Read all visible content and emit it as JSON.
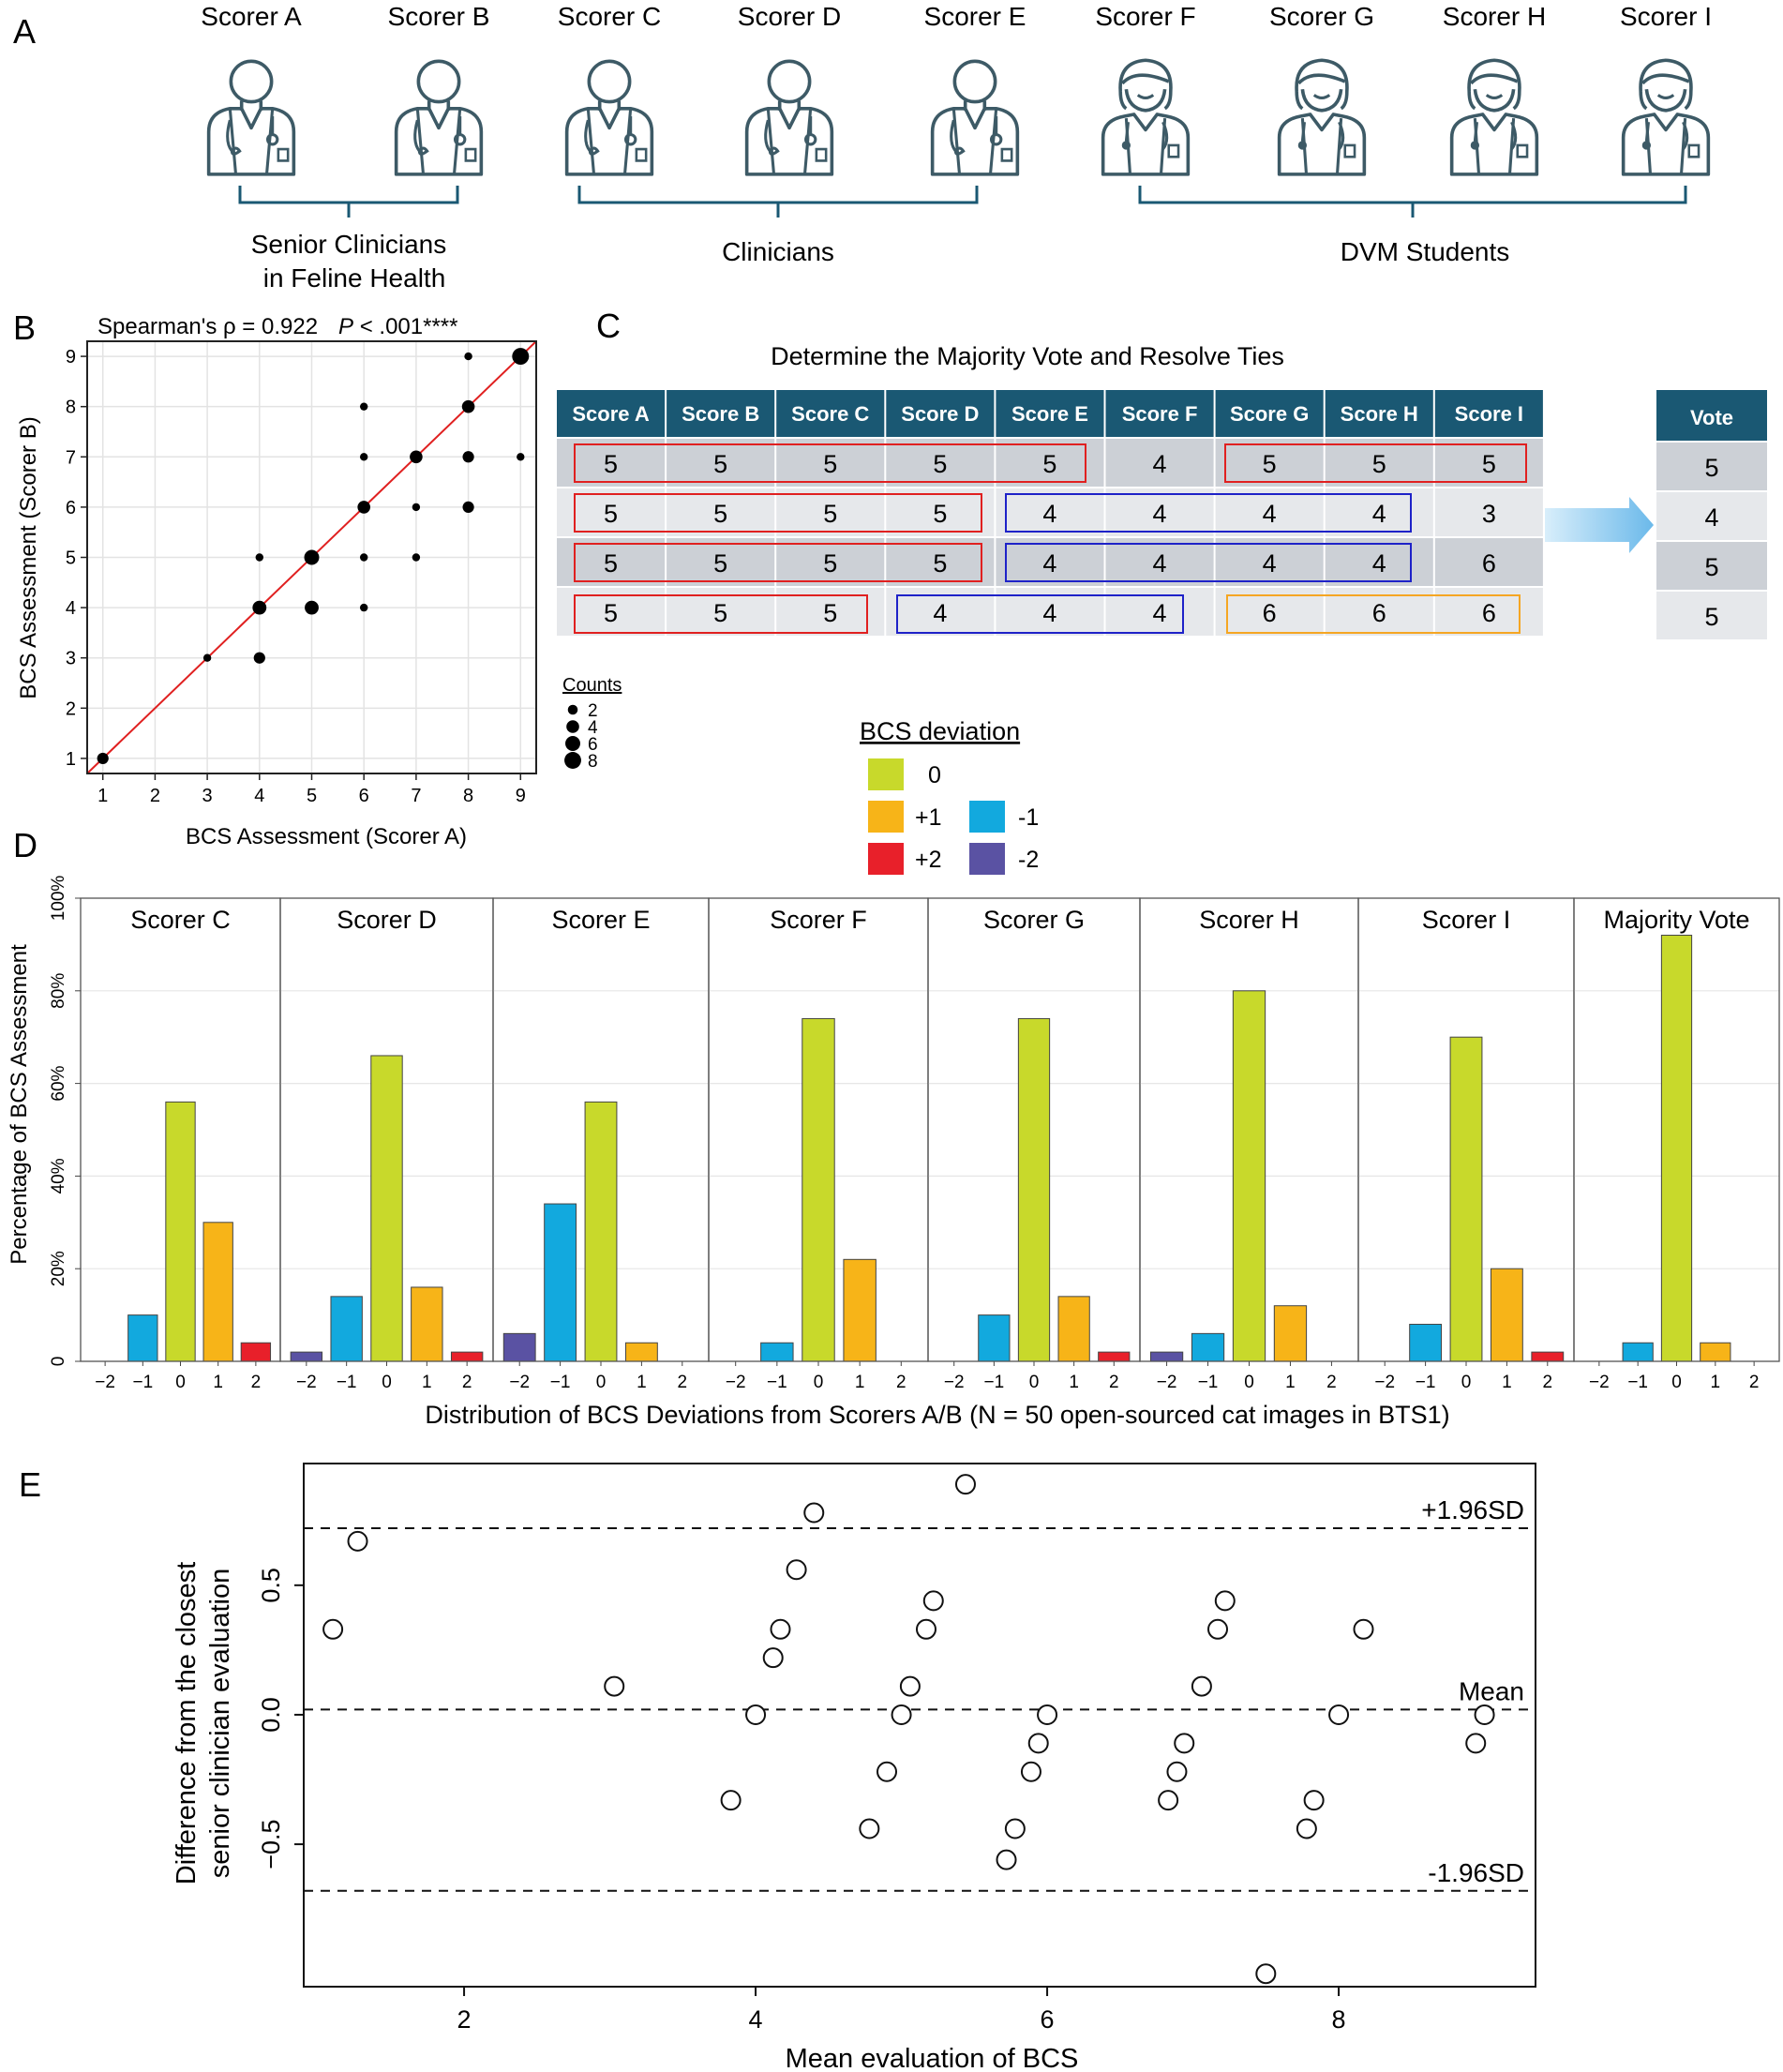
{
  "panel_labels": {
    "a": "A",
    "b": "B",
    "c": "C",
    "d": "D",
    "e": "E"
  },
  "colors": {
    "icon": "#3d5a66",
    "bracket": "#1a5873",
    "table_header": "#1a5873",
    "row_dark": "#ccd0d6",
    "row_light": "#e6e8eb",
    "red_group": "#e02020",
    "blue_group": "#1e22c8",
    "orange_group": "#f5a623",
    "arrow": "#8ec9ef",
    "identity_line": "#e02020"
  },
  "panel_a": {
    "scorers": [
      {
        "name": "Scorer A",
        "icon": "doctor-male-icon"
      },
      {
        "name": "Scorer B",
        "icon": "doctor-male-icon"
      },
      {
        "name": "Scorer C",
        "icon": "doctor-male-icon"
      },
      {
        "name": "Scorer D",
        "icon": "doctor-male-icon"
      },
      {
        "name": "Scorer E",
        "icon": "doctor-male-icon"
      },
      {
        "name": "Scorer F",
        "icon": "doctor-female-icon"
      },
      {
        "name": "Scorer G",
        "icon": "doctor-female-icon"
      },
      {
        "name": "Scorer H",
        "icon": "doctor-female-icon"
      },
      {
        "name": "Scorer I",
        "icon": "doctor-female-icon"
      }
    ],
    "groups": {
      "senior_line1": "Senior Clinicians",
      "senior_line2": "in Feline Health",
      "clinicians": "Clinicians",
      "students": "DVM Students"
    }
  },
  "panel_c": {
    "title": "Determine the Majority Vote and Resolve Ties",
    "headers": [
      "Score A",
      "Score B",
      "Score C",
      "Score D",
      "Score E",
      "Score F",
      "Score G",
      "Score H",
      "Score I"
    ],
    "rows": [
      [
        "5",
        "5",
        "5",
        "5",
        "5",
        "4",
        "5",
        "5",
        "5"
      ],
      [
        "5",
        "5",
        "5",
        "5",
        "4",
        "4",
        "4",
        "4",
        "3"
      ],
      [
        "5",
        "5",
        "5",
        "5",
        "4",
        "4",
        "4",
        "4",
        "6"
      ],
      [
        "5",
        "5",
        "5",
        "4",
        "4",
        "4",
        "6",
        "6",
        "6"
      ]
    ],
    "vote_header": "Vote",
    "votes": [
      "5",
      "4",
      "5",
      "5"
    ]
  },
  "chart_data": [
    {
      "id": "B",
      "type": "scatter",
      "title": "Spearman's ρ = 0.922",
      "p_label": "P",
      "p_value": " < .001****",
      "xlabel": "BCS Assessment (Scorer A)",
      "ylabel": "BCS Assessment (Scorer B)",
      "xlim": [
        0.7,
        9.3
      ],
      "ylim": [
        0.7,
        9.3
      ],
      "xticks": [
        1,
        2,
        3,
        4,
        5,
        6,
        7,
        8,
        9
      ],
      "yticks": [
        1,
        2,
        3,
        4,
        5,
        6,
        7,
        8,
        9
      ],
      "identity_line": true,
      "points": [
        {
          "x": 1,
          "y": 1,
          "count": 3
        },
        {
          "x": 3,
          "y": 3,
          "count": 1
        },
        {
          "x": 4,
          "y": 3,
          "count": 3
        },
        {
          "x": 4,
          "y": 4,
          "count": 5
        },
        {
          "x": 4,
          "y": 5,
          "count": 1
        },
        {
          "x": 5,
          "y": 4,
          "count": 5
        },
        {
          "x": 5,
          "y": 5,
          "count": 6
        },
        {
          "x": 6,
          "y": 4,
          "count": 1
        },
        {
          "x": 6,
          "y": 5,
          "count": 1
        },
        {
          "x": 6,
          "y": 6,
          "count": 4
        },
        {
          "x": 6,
          "y": 7,
          "count": 1
        },
        {
          "x": 6,
          "y": 8,
          "count": 1
        },
        {
          "x": 7,
          "y": 5,
          "count": 1
        },
        {
          "x": 7,
          "y": 6,
          "count": 1
        },
        {
          "x": 7,
          "y": 7,
          "count": 4
        },
        {
          "x": 8,
          "y": 6,
          "count": 3
        },
        {
          "x": 8,
          "y": 7,
          "count": 3
        },
        {
          "x": 8,
          "y": 8,
          "count": 4
        },
        {
          "x": 8,
          "y": 9,
          "count": 1
        },
        {
          "x": 9,
          "y": 7,
          "count": 1
        },
        {
          "x": 9,
          "y": 9,
          "count": 8
        }
      ],
      "size_legend": {
        "title": "Counts",
        "values": [
          2,
          4,
          6,
          8
        ]
      }
    },
    {
      "id": "D",
      "type": "bar",
      "xlabel": "Distribution of BCS Deviations from Scorers A/B (N = 50 open-sourced cat images in BTS1)",
      "ylabel": "Percentage of BCS Assessment",
      "ylim": [
        0,
        100
      ],
      "yticks": [
        "0",
        "20%",
        "40%",
        "60%",
        "80%",
        "100%"
      ],
      "categories": [
        "−2",
        "−1",
        "0",
        "1",
        "2"
      ],
      "legend": {
        "title": "BCS deviation",
        "items": [
          {
            "label": "0",
            "color": "#c8d92b"
          },
          {
            "label": "+1",
            "color": "#f7b418"
          },
          {
            "label": "-1",
            "color": "#12a9de"
          },
          {
            "label": "+2",
            "color": "#e8202a"
          },
          {
            "label": "-2",
            "color": "#5a52a3"
          }
        ]
      },
      "category_colors": [
        "#5a52a3",
        "#12a9de",
        "#c8d92b",
        "#f7b418",
        "#e8202a"
      ],
      "facets": [
        {
          "name": "Scorer C",
          "values": [
            0,
            10,
            56,
            30,
            4
          ]
        },
        {
          "name": "Scorer D",
          "values": [
            2,
            14,
            66,
            16,
            2
          ]
        },
        {
          "name": "Scorer E",
          "values": [
            6,
            34,
            56,
            4,
            0
          ]
        },
        {
          "name": "Scorer F",
          "values": [
            0,
            4,
            74,
            22,
            0
          ]
        },
        {
          "name": "Scorer G",
          "values": [
            0,
            10,
            74,
            14,
            2
          ]
        },
        {
          "name": "Scorer H",
          "values": [
            2,
            6,
            80,
            12,
            0
          ]
        },
        {
          "name": "Scorer I",
          "values": [
            0,
            8,
            70,
            20,
            2
          ]
        },
        {
          "name": "Majority Vote",
          "values": [
            0,
            4,
            92,
            4,
            0
          ]
        }
      ]
    },
    {
      "id": "E",
      "type": "scatter",
      "subtype": "bland-altman",
      "xlabel": "Mean evaluation of BCS",
      "ylabel_line1": "Difference from the closest",
      "ylabel_line2": "senior clinician evaluation",
      "xlim": [
        0.9,
        9.35
      ],
      "ylim": [
        -1.05,
        0.97
      ],
      "xticks": [
        2,
        4,
        6,
        8
      ],
      "yticks": [
        0.5,
        0.0,
        -0.5
      ],
      "ytick_labels": [
        "0.5",
        "0.0",
        "−0.5"
      ],
      "hlines": [
        {
          "label": "+1.96SD",
          "y": 0.72
        },
        {
          "label": "Mean",
          "y": 0.02
        },
        {
          "label": "-1.96SD",
          "y": -0.68
        }
      ],
      "points": [
        {
          "x": 1.1,
          "y": 0.33
        },
        {
          "x": 1.27,
          "y": 0.67
        },
        {
          "x": 3.03,
          "y": 0.11
        },
        {
          "x": 3.83,
          "y": -0.33
        },
        {
          "x": 4.0,
          "y": 0.0
        },
        {
          "x": 4.12,
          "y": 0.22
        },
        {
          "x": 4.17,
          "y": 0.33
        },
        {
          "x": 4.28,
          "y": 0.56
        },
        {
          "x": 4.4,
          "y": 0.78
        },
        {
          "x": 4.78,
          "y": -0.44
        },
        {
          "x": 4.9,
          "y": -0.22
        },
        {
          "x": 5.0,
          "y": 0.0
        },
        {
          "x": 5.06,
          "y": 0.11
        },
        {
          "x": 5.17,
          "y": 0.33
        },
        {
          "x": 5.22,
          "y": 0.44
        },
        {
          "x": 5.44,
          "y": 0.89
        },
        {
          "x": 5.72,
          "y": -0.56
        },
        {
          "x": 5.78,
          "y": -0.44
        },
        {
          "x": 5.89,
          "y": -0.22
        },
        {
          "x": 5.94,
          "y": -0.11
        },
        {
          "x": 6.0,
          "y": 0.0
        },
        {
          "x": 6.83,
          "y": -0.33
        },
        {
          "x": 6.89,
          "y": -0.22
        },
        {
          "x": 6.94,
          "y": -0.11
        },
        {
          "x": 7.06,
          "y": 0.11
        },
        {
          "x": 7.17,
          "y": 0.33
        },
        {
          "x": 7.22,
          "y": 0.44
        },
        {
          "x": 7.5,
          "y": -1.0
        },
        {
          "x": 7.78,
          "y": -0.44
        },
        {
          "x": 7.83,
          "y": -0.33
        },
        {
          "x": 8.0,
          "y": 0.0
        },
        {
          "x": 8.17,
          "y": 0.33
        },
        {
          "x": 8.94,
          "y": -0.11
        },
        {
          "x": 9.0,
          "y": 0.0
        }
      ]
    }
  ]
}
